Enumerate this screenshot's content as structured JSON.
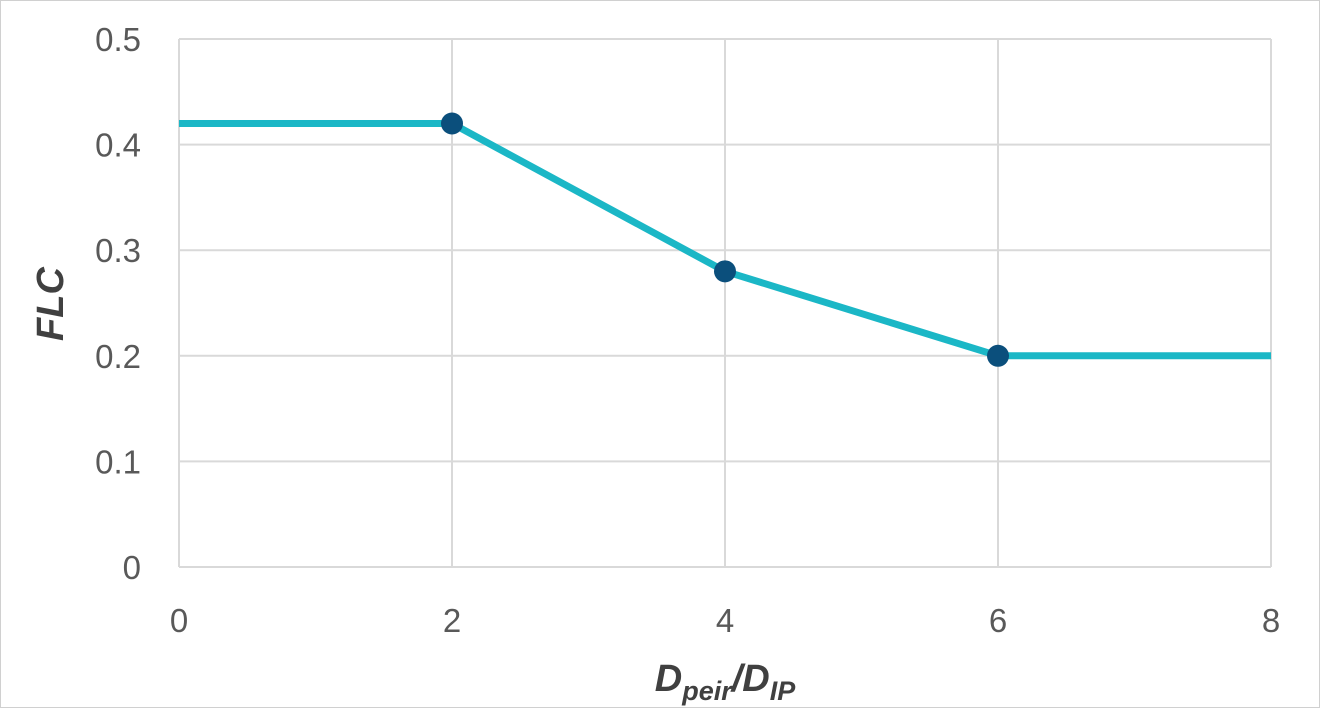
{
  "chart_data": {
    "type": "line",
    "title": "",
    "xlabel": {
      "main": "D",
      "sub1": "peir",
      "sep": "/D",
      "sub2": "IP"
    },
    "ylabel": "FLC",
    "xlim": [
      0,
      8
    ],
    "ylim": [
      0,
      0.5
    ],
    "x_ticks": [
      "0",
      "2",
      "4",
      "6",
      "8"
    ],
    "y_ticks": [
      "0",
      "0.1",
      "0.2",
      "0.3",
      "0.4",
      "0.5"
    ],
    "grid": true,
    "legend": "none",
    "series": [
      {
        "line_x": [
          0,
          2,
          4,
          6,
          8
        ],
        "line_y": [
          0.42,
          0.42,
          0.28,
          0.2,
          0.2
        ],
        "marker_x": [
          2,
          4,
          6
        ],
        "marker_y": [
          0.42,
          0.28,
          0.2
        ],
        "line_color": "#1BB7C6",
        "marker_color": "#0B4F7C"
      }
    ]
  }
}
